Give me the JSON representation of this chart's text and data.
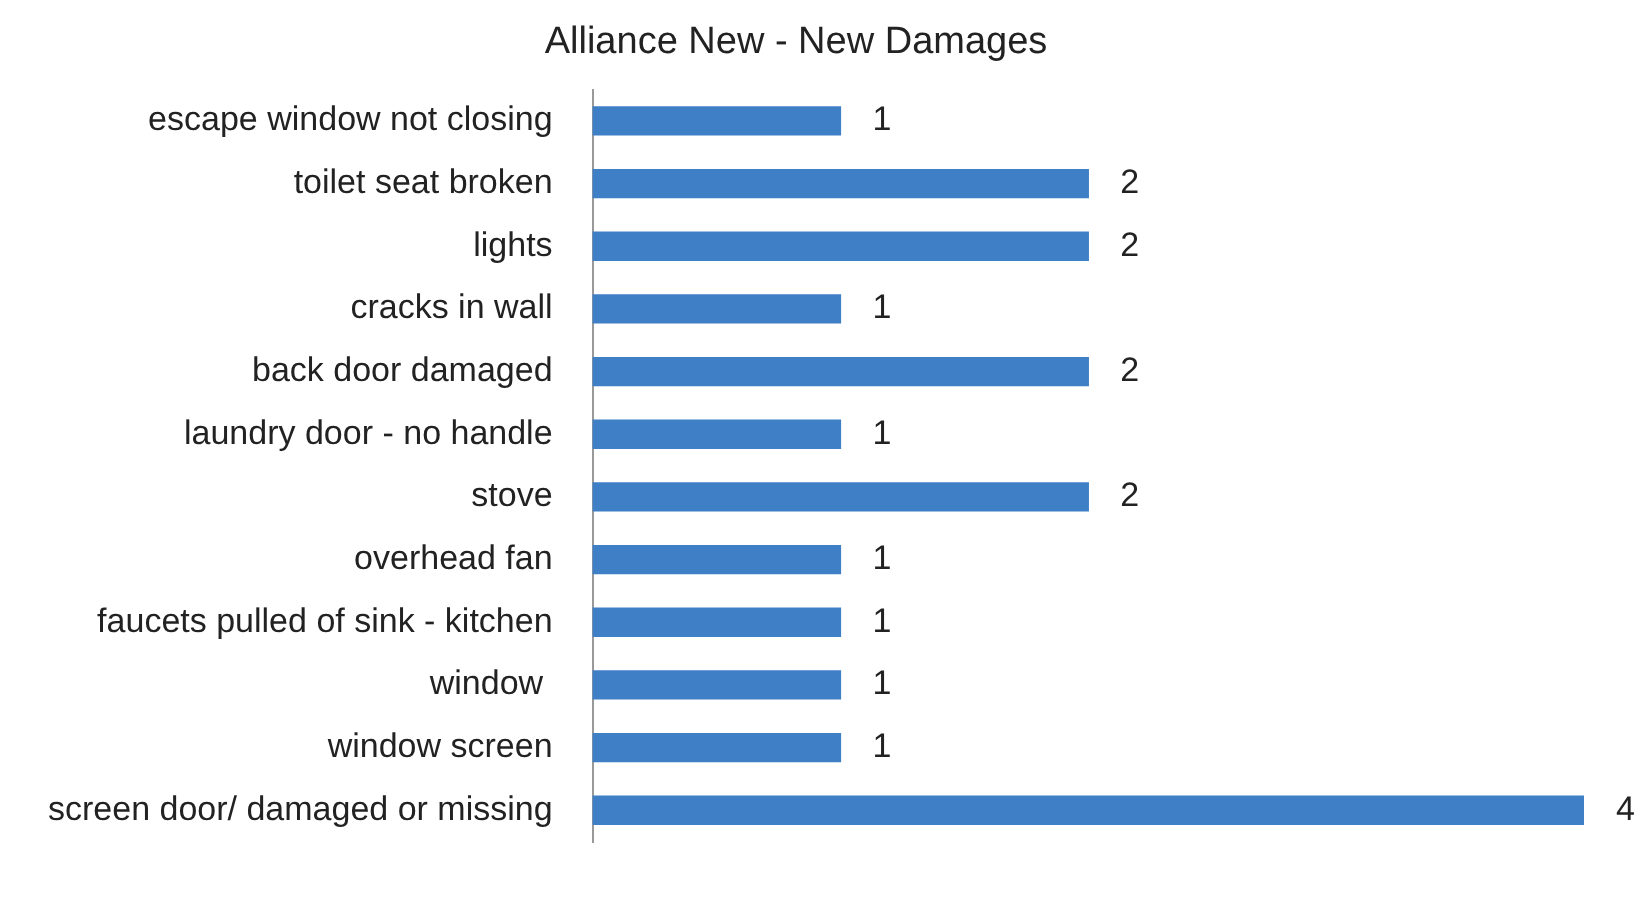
{
  "chart_data": {
    "type": "bar",
    "orientation": "horizontal",
    "title": "Alliance New - New Damages",
    "categories": [
      "escape window not closing",
      "toilet seat broken",
      "lights",
      "cracks in wall",
      "back door damaged",
      "laundry door - no handle",
      "stove",
      "overhead fan",
      "faucets pulled of sink - kitchen",
      "window ",
      "window screen",
      "screen door/ damaged or missing"
    ],
    "values": [
      1,
      2,
      2,
      1,
      2,
      1,
      2,
      1,
      1,
      1,
      1,
      4
    ],
    "color": "#3f7fc6",
    "data_labels": true,
    "legend": false
  }
}
